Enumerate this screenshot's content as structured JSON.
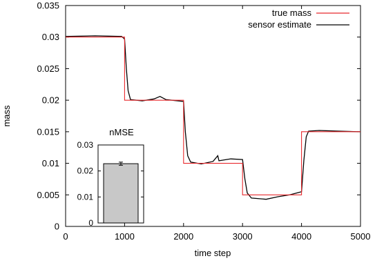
{
  "chart_data": [
    {
      "type": "line",
      "xlabel": "time step",
      "ylabel": "mass",
      "xlim": [
        0,
        5000
      ],
      "ylim": [
        0,
        0.035
      ],
      "x_ticks": [
        "0",
        "1000",
        "2000",
        "3000",
        "4000",
        "5000"
      ],
      "y_ticks": [
        "0",
        "0.005",
        "0.01",
        "0.015",
        "0.02",
        "0.025",
        "0.03",
        "0.035"
      ],
      "grid": false,
      "legend_position": "top-right",
      "series": [
        {
          "name": "true mass",
          "color": "#e8282c",
          "points": [
            [
              0,
              0.03
            ],
            [
              1000,
              0.03
            ],
            [
              1000,
              0.02
            ],
            [
              2000,
              0.02
            ],
            [
              2000,
              0.01
            ],
            [
              3000,
              0.01
            ],
            [
              3000,
              0.005
            ],
            [
              4000,
              0.005
            ],
            [
              4000,
              0.015
            ],
            [
              5000,
              0.015
            ]
          ]
        },
        {
          "name": "sensor estimate",
          "color": "#000000",
          "points": [
            [
              0,
              0.0301
            ],
            [
              500,
              0.0302
            ],
            [
              950,
              0.0301
            ],
            [
              1000,
              0.0297
            ],
            [
              1030,
              0.025
            ],
            [
              1060,
              0.0215
            ],
            [
              1100,
              0.0201
            ],
            [
              1300,
              0.0199
            ],
            [
              1500,
              0.0202
            ],
            [
              1600,
              0.0206
            ],
            [
              1700,
              0.0201
            ],
            [
              2000,
              0.0198
            ],
            [
              2030,
              0.015
            ],
            [
              2070,
              0.0112
            ],
            [
              2120,
              0.0102
            ],
            [
              2300,
              0.0099
            ],
            [
              2500,
              0.0103
            ],
            [
              2580,
              0.0112
            ],
            [
              2600,
              0.0104
            ],
            [
              2800,
              0.0107
            ],
            [
              3000,
              0.0106
            ],
            [
              3040,
              0.0075
            ],
            [
              3080,
              0.0053
            ],
            [
              3150,
              0.0045
            ],
            [
              3400,
              0.0043
            ],
            [
              3600,
              0.0047
            ],
            [
              3800,
              0.005
            ],
            [
              4000,
              0.0055
            ],
            [
              4040,
              0.0105
            ],
            [
              4080,
              0.0142
            ],
            [
              4120,
              0.0151
            ],
            [
              4300,
              0.0152
            ],
            [
              4600,
              0.0151
            ],
            [
              5000,
              0.015
            ]
          ]
        }
      ]
    },
    {
      "type": "bar",
      "title": "nMSE",
      "categories": [
        ""
      ],
      "values": [
        0.0228
      ],
      "error": [
        0.0006
      ],
      "ylim": [
        0,
        0.03
      ],
      "y_ticks": [
        "0",
        "0.01",
        "0.02",
        "0.03"
      ],
      "bar_color": "#c8c8c8"
    }
  ]
}
